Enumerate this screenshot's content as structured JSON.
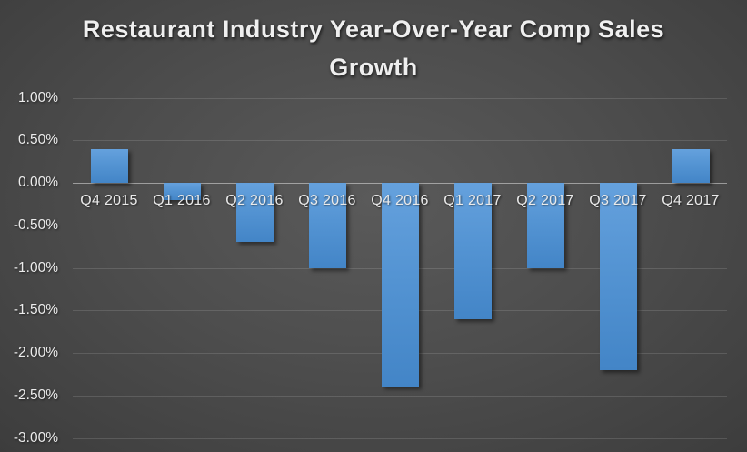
{
  "chart_data": {
    "type": "bar",
    "title": "Restaurant Industry Year-Over-Year Comp Sales Growth",
    "xlabel": "",
    "ylabel": "",
    "unit": "percent",
    "categories": [
      "Q4 2015",
      "Q1 2016",
      "Q2 2016",
      "Q3 2016",
      "Q4 2016",
      "Q1 2017",
      "Q2 2017",
      "Q3 2017",
      "Q4 2017"
    ],
    "values": [
      0.4,
      -0.2,
      -0.7,
      -1.0,
      -2.4,
      -1.6,
      -1.0,
      -2.2,
      0.4
    ],
    "ylim": [
      -3.0,
      1.0
    ],
    "yticks": [
      1.0,
      0.5,
      0.0,
      -0.5,
      -1.0,
      -1.5,
      -2.0,
      -2.5,
      -3.0
    ],
    "ytick_labels": [
      "1.00%",
      "0.50%",
      "0.00%",
      "-0.50%",
      "-1.00%",
      "-1.50%",
      "-2.00%",
      "-2.50%",
      "-3.00%"
    ],
    "grid": true,
    "legend": "none",
    "colors": {
      "bar_fill_top": "#65a1dd",
      "bar_fill_bottom": "#4385c7",
      "background_center": "#5a5a5a",
      "background_edge": "#222222",
      "gridline": "rgba(255,255,255,0.13)",
      "zero_axis_line": "rgba(255,255,255,0.45)",
      "title_text": "#efefef",
      "axis_text": "#ececec"
    }
  }
}
